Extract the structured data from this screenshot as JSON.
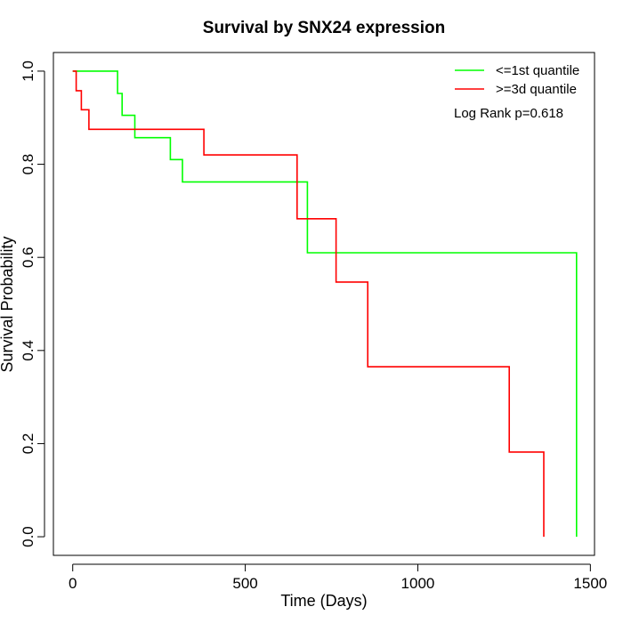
{
  "chart_data": {
    "type": "line",
    "title": "Survival by SNX24 expression",
    "xlabel": "Time (Days)",
    "ylabel": "Survival Probability",
    "xlim": [
      -56,
      1512
    ],
    "ylim": [
      -0.04,
      1.04
    ],
    "x_ticks": [
      0,
      500,
      1000,
      1500
    ],
    "x_tick_labels": [
      "0",
      "500",
      "1000",
      "1500"
    ],
    "y_ticks": [
      0.0,
      0.2,
      0.4,
      0.6,
      0.8,
      1.0
    ],
    "y_tick_labels": [
      "0.0",
      "0.2",
      "0.4",
      "0.6",
      "0.8",
      "1.0"
    ],
    "grid": false,
    "legend_position": "top-right",
    "annotation": "Log Rank p=0.618",
    "series": [
      {
        "name": "<=1st quantile",
        "color": "#00ff00",
        "step": true,
        "points": [
          [
            0,
            1.0
          ],
          [
            130,
            1.0
          ],
          [
            130,
            0.952
          ],
          [
            143,
            0.952
          ],
          [
            143,
            0.905
          ],
          [
            180,
            0.905
          ],
          [
            180,
            0.857
          ],
          [
            283,
            0.857
          ],
          [
            283,
            0.81
          ],
          [
            318,
            0.81
          ],
          [
            318,
            0.762
          ],
          [
            680,
            0.762
          ],
          [
            680,
            0.61
          ],
          [
            1460,
            0.61
          ],
          [
            1460,
            0.0
          ]
        ]
      },
      {
        "name": ">=3d quantile",
        "color": "#ff0000",
        "step": true,
        "points": [
          [
            0,
            1.0
          ],
          [
            10,
            1.0
          ],
          [
            10,
            0.958
          ],
          [
            25,
            0.958
          ],
          [
            25,
            0.917
          ],
          [
            47,
            0.917
          ],
          [
            47,
            0.875
          ],
          [
            380,
            0.875
          ],
          [
            380,
            0.82
          ],
          [
            650,
            0.82
          ],
          [
            650,
            0.683
          ],
          [
            763,
            0.683
          ],
          [
            763,
            0.547
          ],
          [
            855,
            0.547
          ],
          [
            855,
            0.365
          ],
          [
            1265,
            0.365
          ],
          [
            1265,
            0.182
          ],
          [
            1365,
            0.182
          ],
          [
            1365,
            0.0
          ]
        ]
      }
    ]
  }
}
